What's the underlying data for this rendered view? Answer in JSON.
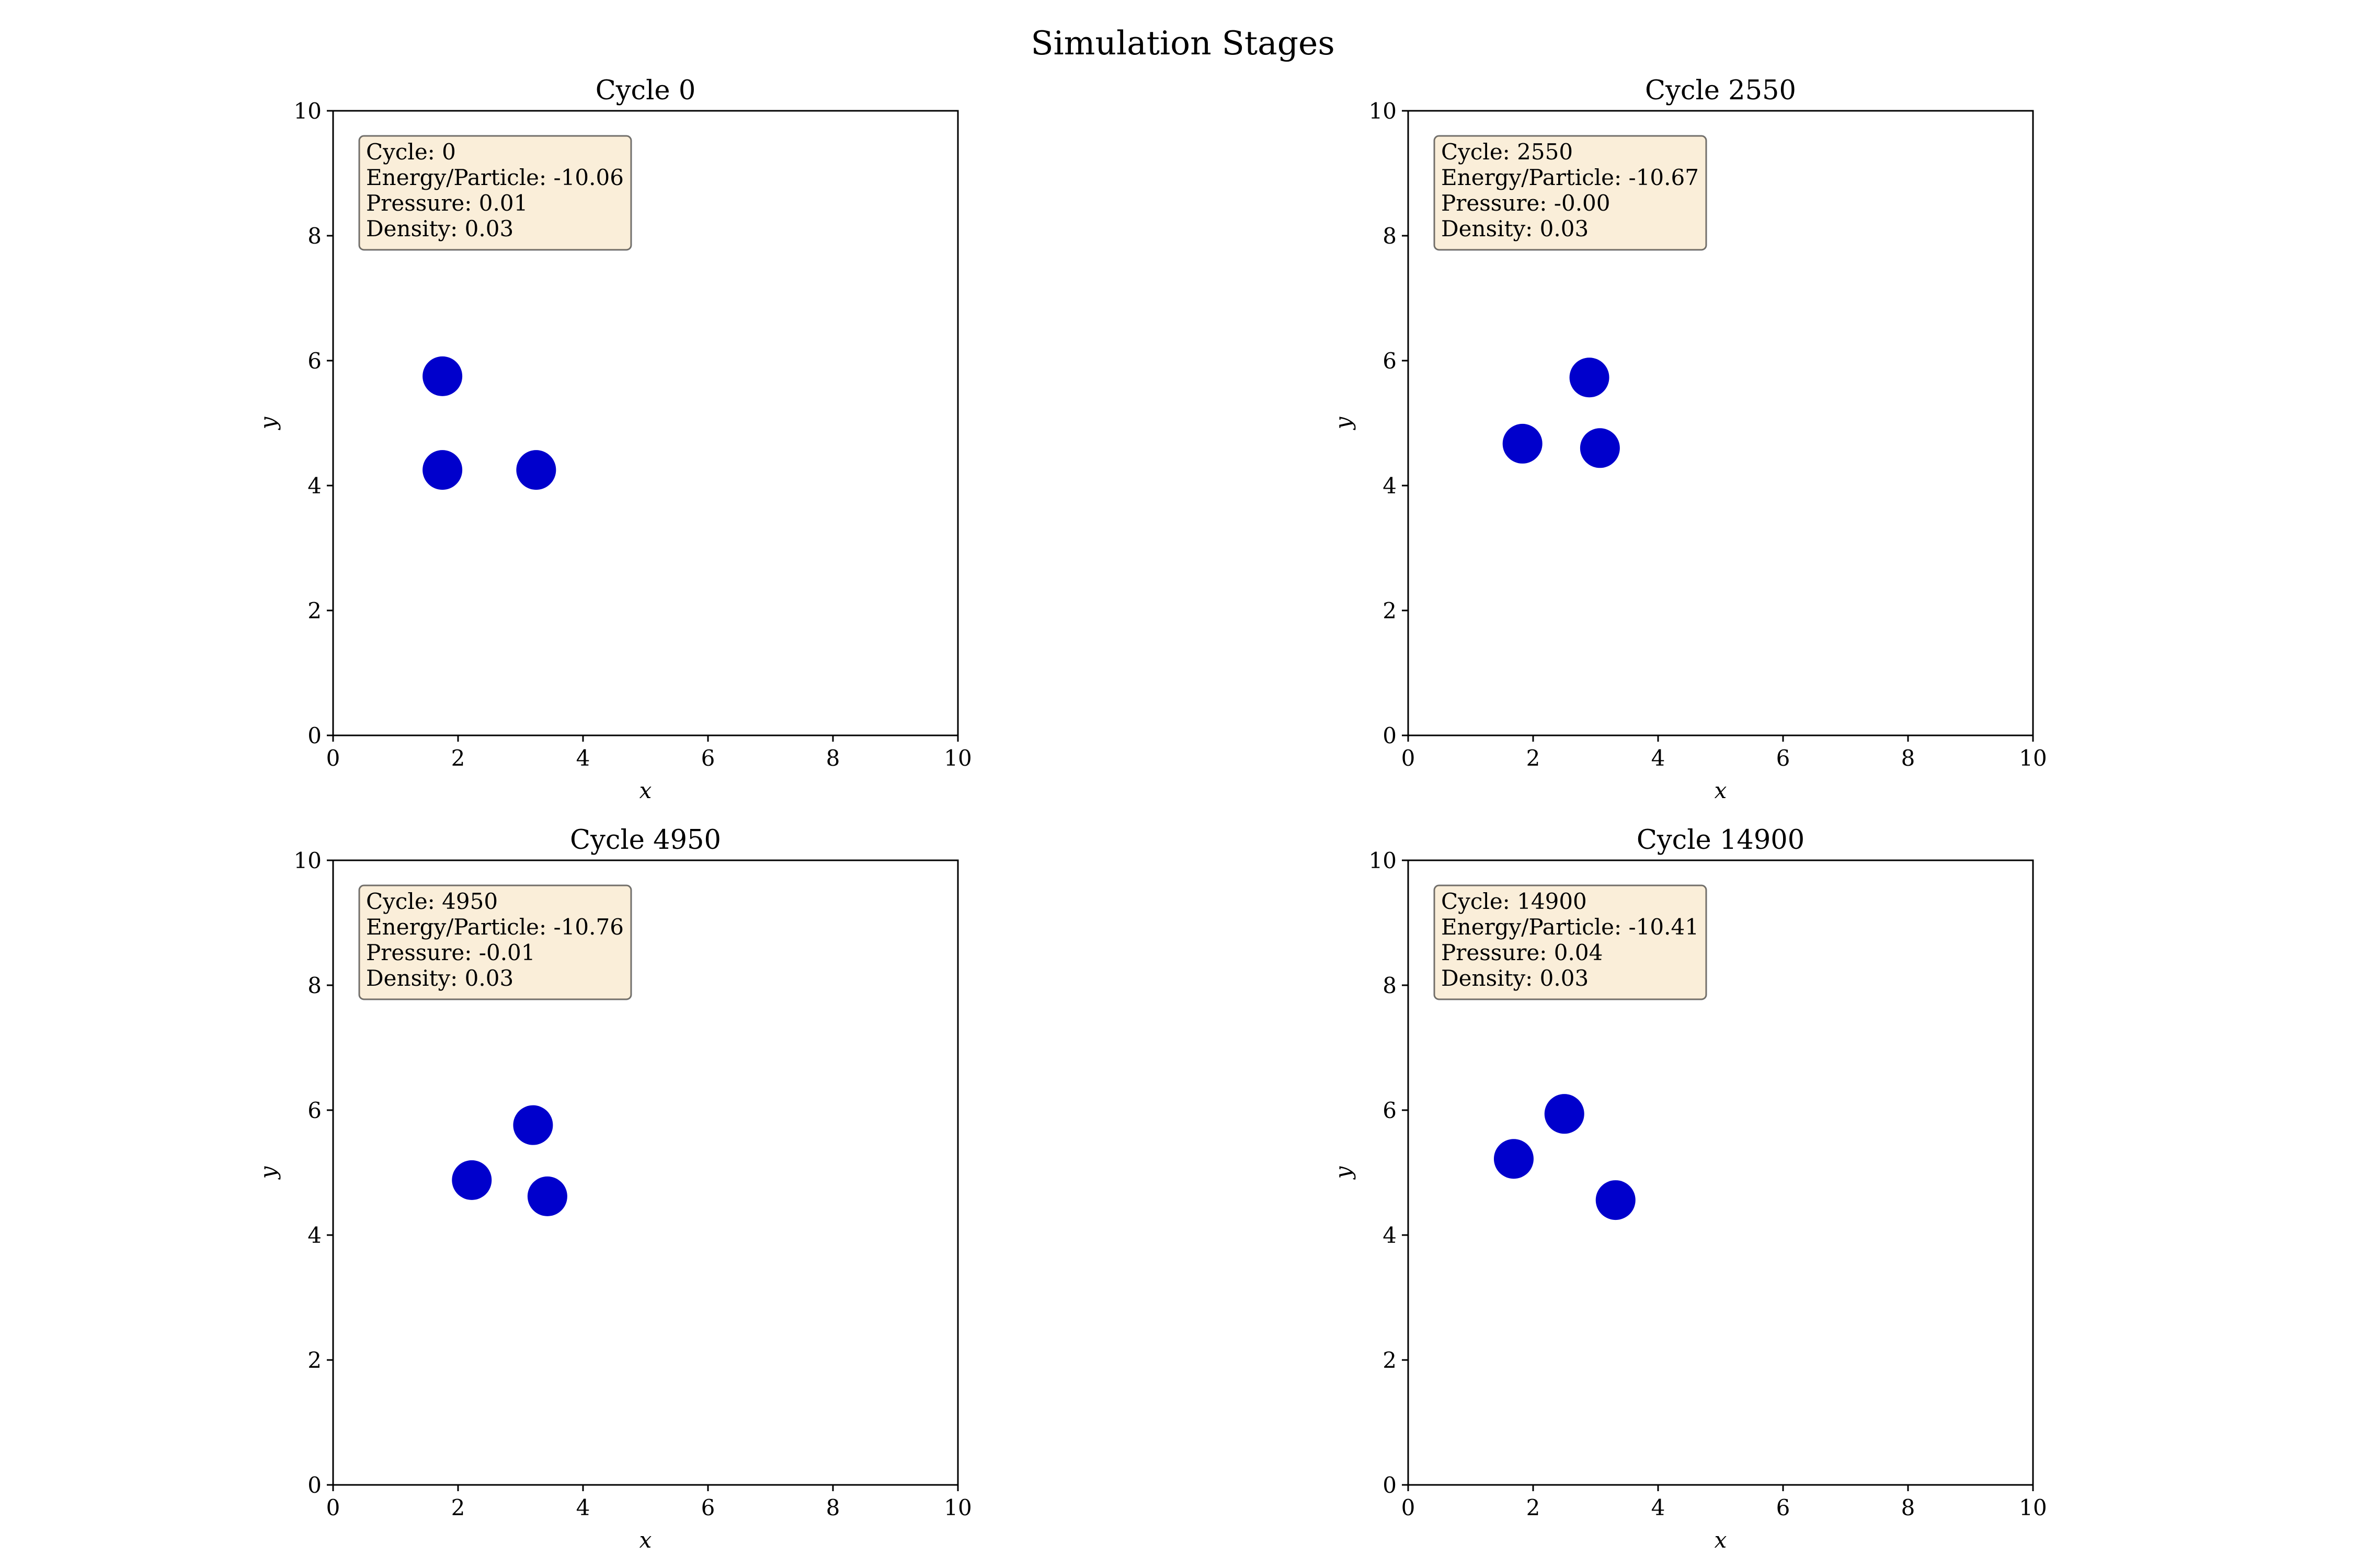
{
  "suptitle": "Simulation Stages",
  "colors": {
    "particle": "#0000cc",
    "infobox_fill": "#f5deb3",
    "infobox_edge": "#000000"
  },
  "chart_data": [
    {
      "type": "scatter",
      "title": "Cycle 0",
      "xlabel": "x",
      "ylabel": "y",
      "xlim": [
        0,
        10
      ],
      "ylim": [
        0,
        10
      ],
      "xticks": [
        0,
        2,
        4,
        6,
        8,
        10
      ],
      "yticks": [
        0,
        2,
        4,
        6,
        8,
        10
      ],
      "grid": false,
      "info": [
        "Cycle: 0",
        "Energy/Particle: -10.06",
        "Pressure: 0.01",
        "Density: 0.03"
      ],
      "points": [
        {
          "x": 1.75,
          "y": 5.75
        },
        {
          "x": 1.75,
          "y": 4.25
        },
        {
          "x": 3.25,
          "y": 4.25
        }
      ]
    },
    {
      "type": "scatter",
      "title": "Cycle 2550",
      "xlabel": "x",
      "ylabel": "y",
      "xlim": [
        0,
        10
      ],
      "ylim": [
        0,
        10
      ],
      "xticks": [
        0,
        2,
        4,
        6,
        8,
        10
      ],
      "yticks": [
        0,
        2,
        4,
        6,
        8,
        10
      ],
      "grid": false,
      "info": [
        "Cycle: 2550",
        "Energy/Particle: -10.67",
        "Pressure: -0.00",
        "Density: 0.03"
      ],
      "points": [
        {
          "x": 2.9,
          "y": 5.73
        },
        {
          "x": 1.83,
          "y": 4.67
        },
        {
          "x": 3.07,
          "y": 4.6
        }
      ]
    },
    {
      "type": "scatter",
      "title": "Cycle 4950",
      "xlabel": "x",
      "ylabel": "y",
      "xlim": [
        0,
        10
      ],
      "ylim": [
        0,
        10
      ],
      "xticks": [
        0,
        2,
        4,
        6,
        8,
        10
      ],
      "yticks": [
        0,
        2,
        4,
        6,
        8,
        10
      ],
      "grid": false,
      "info": [
        "Cycle: 4950",
        "Energy/Particle: -10.76",
        "Pressure: -0.01",
        "Density: 0.03"
      ],
      "points": [
        {
          "x": 3.2,
          "y": 5.76
        },
        {
          "x": 2.22,
          "y": 4.88
        },
        {
          "x": 3.43,
          "y": 4.62
        }
      ]
    },
    {
      "type": "scatter",
      "title": "Cycle 14900",
      "xlabel": "x",
      "ylabel": "y",
      "xlim": [
        0,
        10
      ],
      "ylim": [
        0,
        10
      ],
      "xticks": [
        0,
        2,
        4,
        6,
        8,
        10
      ],
      "yticks": [
        0,
        2,
        4,
        6,
        8,
        10
      ],
      "grid": false,
      "info": [
        "Cycle: 14900",
        "Energy/Particle: -10.41",
        "Pressure: 0.04",
        "Density: 0.03"
      ],
      "points": [
        {
          "x": 2.5,
          "y": 5.94
        },
        {
          "x": 1.69,
          "y": 5.22
        },
        {
          "x": 3.32,
          "y": 4.56
        }
      ]
    }
  ]
}
